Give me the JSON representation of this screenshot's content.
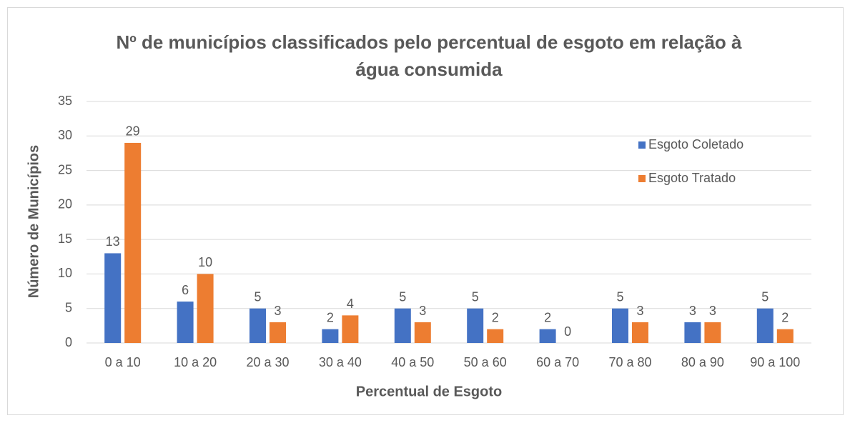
{
  "chart_data": {
    "type": "bar",
    "title": "Nº de municípios classificados pelo percentual de esgoto em relação à água consumida",
    "x_label": "Percentual de Esgoto",
    "y_label": "Número de Municípios",
    "categories": [
      "0 a 10",
      "10 a 20",
      "20 a 30",
      "30 a 40",
      "40 a 50",
      "50 a 60",
      "60 a 70",
      "70 a 80",
      "80 a 90",
      "90 a 100"
    ],
    "series": [
      {
        "name": "Esgoto Coletado",
        "color": "#4472c4",
        "values": [
          13,
          6,
          5,
          2,
          5,
          5,
          2,
          5,
          3,
          5
        ]
      },
      {
        "name": "Esgoto Tratado",
        "color": "#ed7d31",
        "values": [
          29,
          10,
          3,
          4,
          3,
          2,
          0,
          3,
          3,
          2
        ]
      }
    ],
    "ylim": [
      0,
      35
    ],
    "yticks": [
      0,
      5,
      10,
      15,
      20,
      25,
      30,
      35
    ],
    "grid": true,
    "legend": "top-right"
  }
}
